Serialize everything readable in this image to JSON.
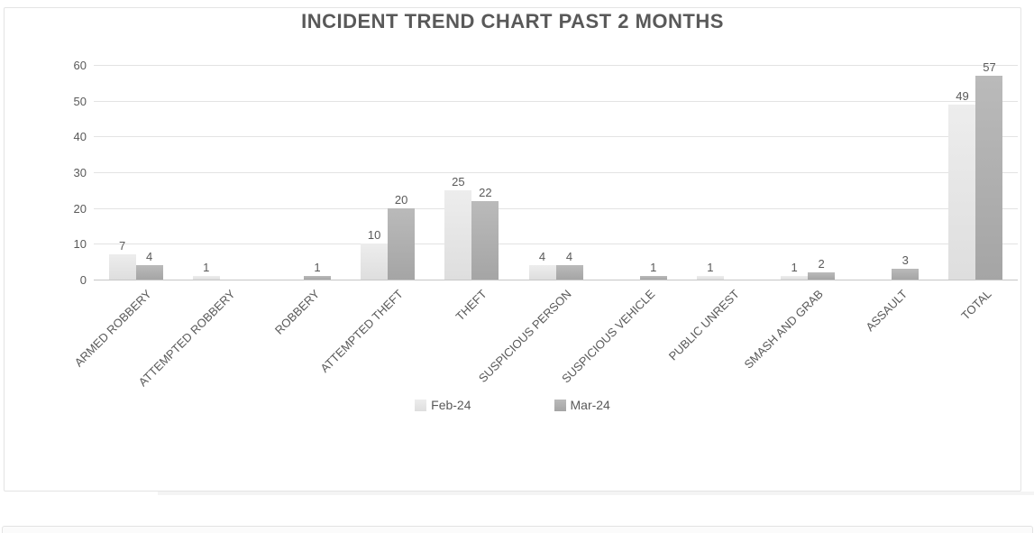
{
  "chart_data": {
    "type": "bar",
    "title": "INCIDENT TREND CHART PAST 2 MONTHS",
    "categories": [
      "ARMED ROBBERY",
      "ATTEMPTED ROBBERY",
      "ROBBERY",
      "ATTEMPTED THEFT",
      "THEFT",
      "SUSPICIOUS PERSON",
      "SUSPICIOUS VEHICLE",
      "PUBLIC UNREST",
      "SMASH AND GRAB",
      "ASSAULT",
      "TOTAL"
    ],
    "series": [
      {
        "name": "Feb-24",
        "color": "#e3e3e3",
        "values": [
          7,
          1,
          0,
          10,
          25,
          4,
          0,
          1,
          1,
          0,
          49
        ]
      },
      {
        "name": "Mar-24",
        "color": "#ababab",
        "values": [
          4,
          0,
          1,
          20,
          22,
          4,
          1,
          0,
          2,
          3,
          57
        ]
      }
    ],
    "y_ticks": [
      0,
      10,
      20,
      30,
      40,
      50,
      60
    ],
    "ylim": [
      0,
      60
    ],
    "grid": true,
    "value_labels": true,
    "legend_position": "bottom-center"
  },
  "colors": {
    "text": "#595959",
    "gridline": "#e3e3e3",
    "axis_line": "#c6c6c6",
    "card_border": "#e4e4e4",
    "series_feb": "#e3e3e3",
    "series_mar": "#ababab"
  }
}
